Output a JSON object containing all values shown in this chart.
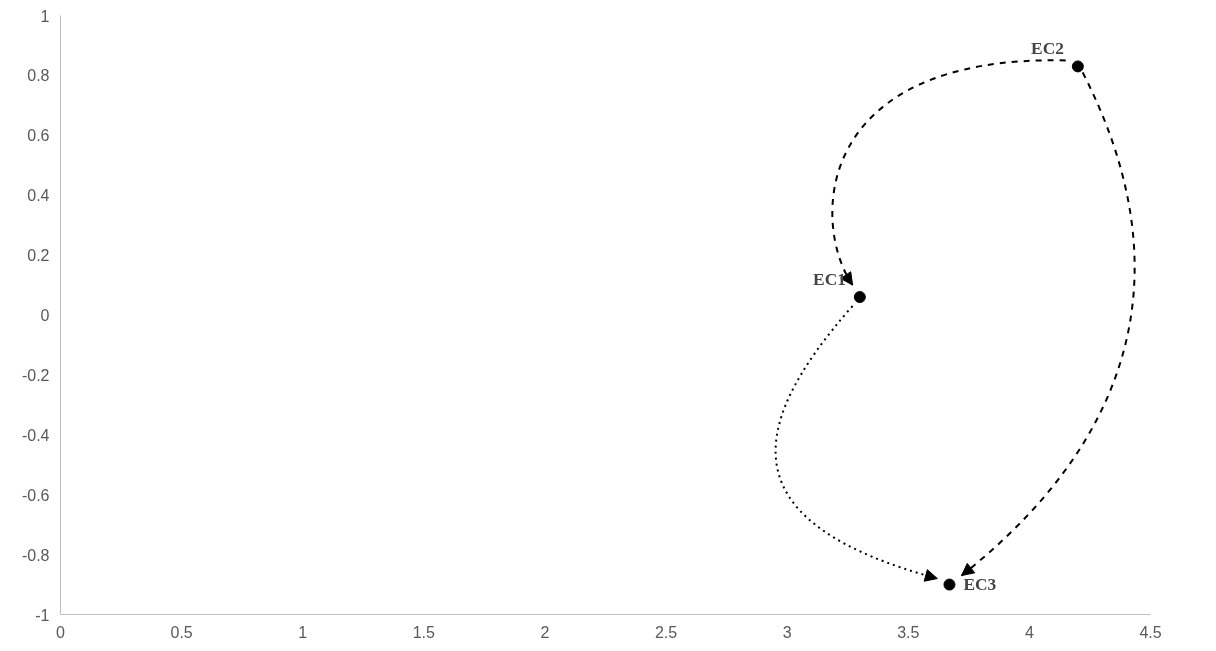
{
  "chart_data": {
    "type": "scatter",
    "x": [
      3.3,
      4.2,
      3.67
    ],
    "values": [
      0.06,
      0.83,
      -0.9
    ],
    "colors": [
      "#000000",
      "#000000",
      "#000000"
    ],
    "marker": "circle",
    "grid": false,
    "xlim": [
      0,
      4.5
    ],
    "xticks": [
      0,
      0.5,
      1,
      1.5,
      2,
      2.5,
      3,
      3.5,
      4,
      4.5
    ],
    "ylim": [
      -1,
      1
    ],
    "yticks": [
      -1,
      -0.8,
      -0.6,
      -0.4,
      -0.2,
      0,
      0.2,
      0.4,
      0.6,
      0.8,
      1
    ],
    "annotations": [
      {
        "text": "EC1",
        "x": 3.3,
        "y": 0.06
      },
      {
        "text": "EC2",
        "x": 4.2,
        "y": 0.83
      },
      {
        "text": "EC3",
        "x": 3.67,
        "y": -0.9
      }
    ]
  }
}
